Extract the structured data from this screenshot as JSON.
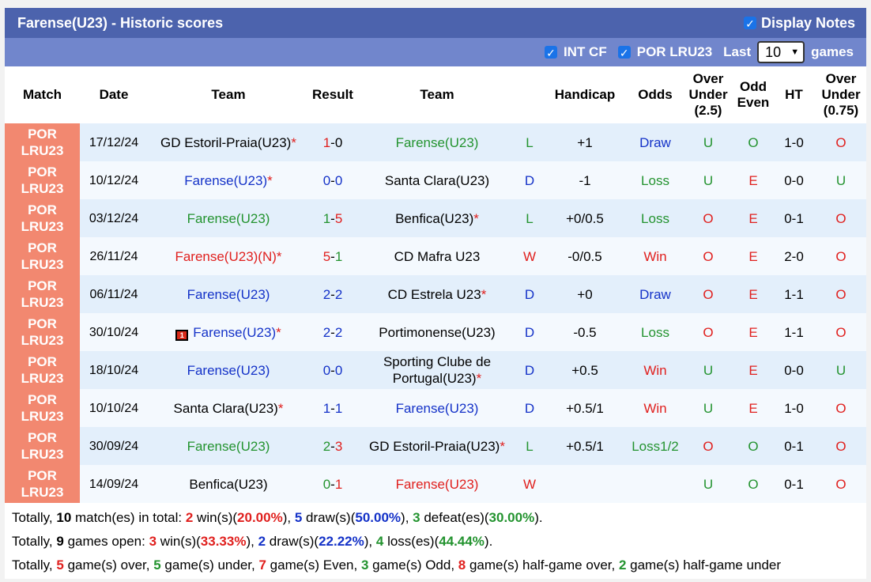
{
  "title": "Farense(U23) - Historic scores",
  "display_notes_label": "Display Notes",
  "filters": {
    "int_cf_label": "INT CF",
    "por_lru23_label": "POR LRU23",
    "last_label": "Last",
    "last_value": "10",
    "games_label": "games"
  },
  "columns": {
    "match": "Match",
    "date": "Date",
    "team": "Team",
    "result": "Result",
    "team2": "Team",
    "handicap": "Handicap",
    "odds": "Odds",
    "over_under": "Over Under (2.5)",
    "odd_even": "Odd Even",
    "ht": "HT",
    "over_under_ht": "Over Under (0.75)"
  },
  "rows": [
    {
      "league": "POR LRU23",
      "date": "17/12/24",
      "home": "GD Estoril-Praia(U23)",
      "home_star": "*",
      "home_color": "black",
      "hs": "1",
      "as": "0",
      "hs_color": "red",
      "as_color": "black",
      "away": "Farense(U23)",
      "away_star": "",
      "away_color": "green",
      "wl": "L",
      "wl_color": "green",
      "hcp": "+1",
      "odds": "Draw",
      "odds_color": "blue",
      "ou": "U",
      "ou_color": "green",
      "oe": "O",
      "oe_color": "green",
      "ht": "1-0",
      "ouht": "O",
      "ouht_color": "red"
    },
    {
      "league": "POR LRU23",
      "date": "10/12/24",
      "home": "Farense(U23)",
      "home_star": "*",
      "home_color": "blue",
      "hs": "0",
      "as": "0",
      "hs_color": "blue",
      "as_color": "blue",
      "away": "Santa Clara(U23)",
      "away_star": "",
      "away_color": "black",
      "wl": "D",
      "wl_color": "blue",
      "hcp": "-1",
      "odds": "Loss",
      "odds_color": "green",
      "ou": "U",
      "ou_color": "green",
      "oe": "E",
      "oe_color": "red",
      "ht": "0-0",
      "ouht": "U",
      "ouht_color": "green"
    },
    {
      "league": "POR LRU23",
      "date": "03/12/24",
      "home": "Farense(U23)",
      "home_star": "",
      "home_color": "green",
      "hs": "1",
      "as": "5",
      "hs_color": "green",
      "as_color": "red",
      "away": "Benfica(U23)",
      "away_star": "*",
      "away_color": "black",
      "wl": "L",
      "wl_color": "green",
      "hcp": "+0/0.5",
      "odds": "Loss",
      "odds_color": "green",
      "ou": "O",
      "ou_color": "red",
      "oe": "E",
      "oe_color": "red",
      "ht": "0-1",
      "ouht": "O",
      "ouht_color": "red"
    },
    {
      "league": "POR LRU23",
      "date": "26/11/24",
      "home": "Farense(U23)(N)",
      "home_star": "*",
      "home_color": "red",
      "hs": "5",
      "as": "1",
      "hs_color": "red",
      "as_color": "green",
      "away": "CD Mafra U23",
      "away_star": "",
      "away_color": "black",
      "wl": "W",
      "wl_color": "red",
      "hcp": "-0/0.5",
      "odds": "Win",
      "odds_color": "red",
      "ou": "O",
      "ou_color": "red",
      "oe": "E",
      "oe_color": "red",
      "ht": "2-0",
      "ouht": "O",
      "ouht_color": "red"
    },
    {
      "league": "POR LRU23",
      "date": "06/11/24",
      "home": "Farense(U23)",
      "home_star": "",
      "home_color": "blue",
      "hs": "2",
      "as": "2",
      "hs_color": "blue",
      "as_color": "blue",
      "away": "CD Estrela U23",
      "away_star": "*",
      "away_color": "black",
      "wl": "D",
      "wl_color": "blue",
      "hcp": "+0",
      "odds": "Draw",
      "odds_color": "blue",
      "ou": "O",
      "ou_color": "red",
      "oe": "E",
      "oe_color": "red",
      "ht": "1-1",
      "ouht": "O",
      "ouht_color": "red"
    },
    {
      "league": "POR LRU23",
      "date": "30/10/24",
      "home": "Farense(U23)",
      "home_star": "*",
      "home_color": "blue",
      "red_card": "1",
      "hs": "2",
      "as": "2",
      "hs_color": "blue",
      "as_color": "blue",
      "away": "Portimonense(U23)",
      "away_star": "",
      "away_color": "black",
      "wl": "D",
      "wl_color": "blue",
      "hcp": "-0.5",
      "odds": "Loss",
      "odds_color": "green",
      "ou": "O",
      "ou_color": "red",
      "oe": "E",
      "oe_color": "red",
      "ht": "1-1",
      "ouht": "O",
      "ouht_color": "red"
    },
    {
      "league": "POR LRU23",
      "date": "18/10/24",
      "home": "Farense(U23)",
      "home_star": "",
      "home_color": "blue",
      "hs": "0",
      "as": "0",
      "hs_color": "blue",
      "as_color": "blue",
      "away": "Sporting Clube de Portugal(U23)",
      "away_star": "*",
      "away_color": "black",
      "wl": "D",
      "wl_color": "blue",
      "hcp": "+0.5",
      "odds": "Win",
      "odds_color": "red",
      "ou": "U",
      "ou_color": "green",
      "oe": "E",
      "oe_color": "red",
      "ht": "0-0",
      "ouht": "U",
      "ouht_color": "green"
    },
    {
      "league": "POR LRU23",
      "date": "10/10/24",
      "home": "Santa Clara(U23)",
      "home_star": "*",
      "home_color": "black",
      "hs": "1",
      "as": "1",
      "hs_color": "blue",
      "as_color": "blue",
      "away": "Farense(U23)",
      "away_star": "",
      "away_color": "blue",
      "wl": "D",
      "wl_color": "blue",
      "hcp": "+0.5/1",
      "odds": "Win",
      "odds_color": "red",
      "ou": "U",
      "ou_color": "green",
      "oe": "E",
      "oe_color": "red",
      "ht": "1-0",
      "ouht": "O",
      "ouht_color": "red"
    },
    {
      "league": "POR LRU23",
      "date": "30/09/24",
      "home": "Farense(U23)",
      "home_star": "",
      "home_color": "green",
      "hs": "2",
      "as": "3",
      "hs_color": "green",
      "as_color": "red",
      "away": "GD Estoril-Praia(U23)",
      "away_star": "*",
      "away_color": "black",
      "wl": "L",
      "wl_color": "green",
      "hcp": "+0.5/1",
      "odds": "Loss1/2",
      "odds_color": "green",
      "ou": "O",
      "ou_color": "red",
      "oe": "O",
      "oe_color": "green",
      "ht": "0-1",
      "ouht": "O",
      "ouht_color": "red"
    },
    {
      "league": "POR LRU23",
      "date": "14/09/24",
      "home": "Benfica(U23)",
      "home_star": "",
      "home_color": "black",
      "hs": "0",
      "as": "1",
      "hs_color": "green",
      "as_color": "red",
      "away": "Farense(U23)",
      "away_star": "",
      "away_color": "red",
      "wl": "W",
      "wl_color": "red",
      "hcp": "",
      "odds": "",
      "odds_color": "black",
      "ou": "U",
      "ou_color": "green",
      "oe": "O",
      "oe_color": "green",
      "ht": "0-1",
      "ouht": "O",
      "ouht_color": "red"
    }
  ],
  "summary": [
    [
      {
        "t": "Totally, ",
        "c": ""
      },
      {
        "t": "10",
        "c": "b"
      },
      {
        "t": " match(es) in total: ",
        "c": ""
      },
      {
        "t": "2",
        "c": "red b"
      },
      {
        "t": " win(s)(",
        "c": ""
      },
      {
        "t": "20.00%",
        "c": "red b"
      },
      {
        "t": "), ",
        "c": ""
      },
      {
        "t": "5",
        "c": "blue b"
      },
      {
        "t": " draw(s)(",
        "c": ""
      },
      {
        "t": "50.00%",
        "c": "blue b"
      },
      {
        "t": "), ",
        "c": ""
      },
      {
        "t": "3",
        "c": "green b"
      },
      {
        "t": " defeat(es)(",
        "c": ""
      },
      {
        "t": "30.00%",
        "c": "green b"
      },
      {
        "t": ").",
        "c": ""
      }
    ],
    [
      {
        "t": "Totally, ",
        "c": ""
      },
      {
        "t": "9",
        "c": "b"
      },
      {
        "t": " games open: ",
        "c": ""
      },
      {
        "t": "3",
        "c": "red b"
      },
      {
        "t": " win(s)(",
        "c": ""
      },
      {
        "t": "33.33%",
        "c": "red b"
      },
      {
        "t": "), ",
        "c": ""
      },
      {
        "t": "2",
        "c": "blue b"
      },
      {
        "t": " draw(s)(",
        "c": ""
      },
      {
        "t": "22.22%",
        "c": "blue b"
      },
      {
        "t": "), ",
        "c": ""
      },
      {
        "t": "4",
        "c": "green b"
      },
      {
        "t": " loss(es)(",
        "c": ""
      },
      {
        "t": "44.44%",
        "c": "green b"
      },
      {
        "t": ").",
        "c": ""
      }
    ],
    [
      {
        "t": "Totally, ",
        "c": ""
      },
      {
        "t": "5",
        "c": "red b"
      },
      {
        "t": " game(s) over, ",
        "c": ""
      },
      {
        "t": "5",
        "c": "green b"
      },
      {
        "t": " game(s) under, ",
        "c": ""
      },
      {
        "t": "7",
        "c": "red b"
      },
      {
        "t": " game(s) Even, ",
        "c": ""
      },
      {
        "t": "3",
        "c": "green b"
      },
      {
        "t": " game(s) Odd, ",
        "c": ""
      },
      {
        "t": "8",
        "c": "red b"
      },
      {
        "t": " game(s) half-game over, ",
        "c": ""
      },
      {
        "t": "2",
        "c": "green b"
      },
      {
        "t": " game(s) half-game under",
        "c": ""
      }
    ]
  ]
}
